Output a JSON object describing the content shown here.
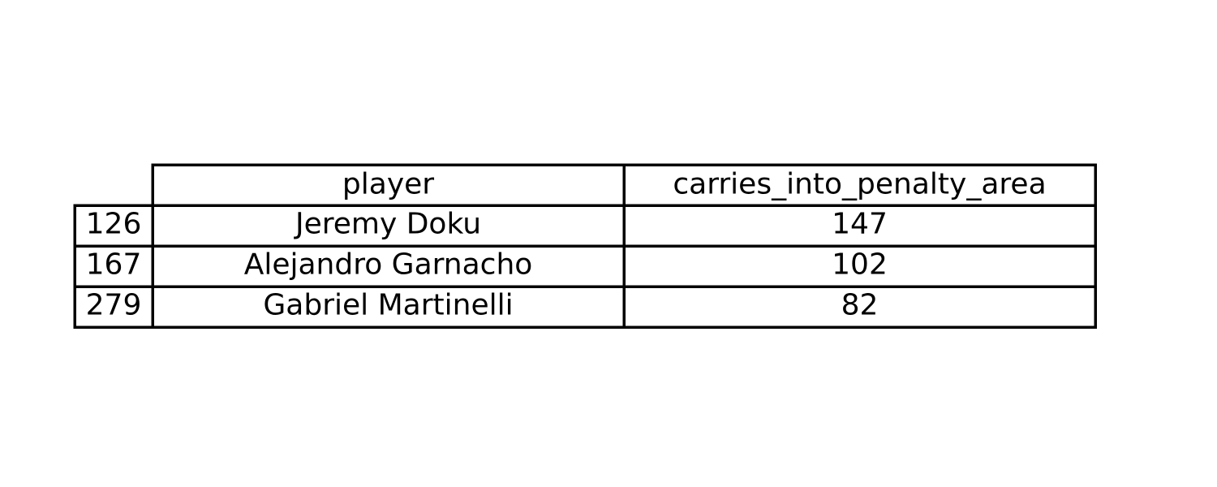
{
  "chart_data": {
    "type": "table",
    "columns": [
      "player",
      "carries_into_penalty_area"
    ],
    "rows": [
      {
        "index": "126",
        "player": "Jeremy Doku",
        "carries_into_penalty_area": "147"
      },
      {
        "index": "167",
        "player": "Alejandro Garnacho",
        "carries_into_penalty_area": "102"
      },
      {
        "index": "279",
        "player": "Gabriel Martinelli",
        "carries_into_penalty_area": "82"
      }
    ]
  }
}
